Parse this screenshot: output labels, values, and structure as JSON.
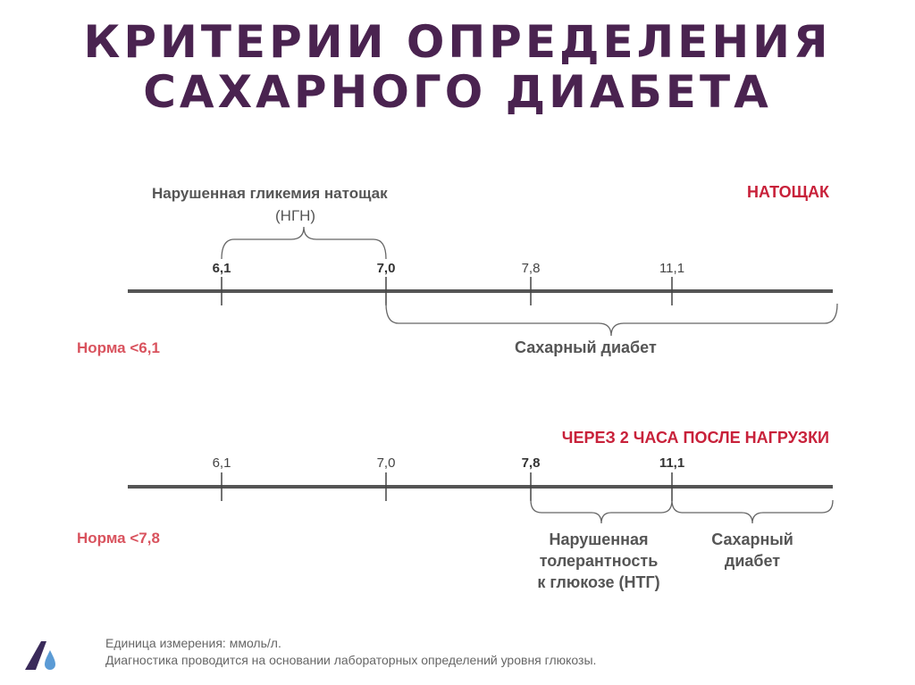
{
  "title_line1": "КРИТЕРИИ ОПРЕДЕЛЕНИЯ",
  "title_line2": "САХАРНОГО ДИАБЕТА",
  "fasting": {
    "header": "НАТОЩАК",
    "ngn_line1": "Нарушенная гликемия натощак",
    "ngn_line2": "(НГН)",
    "ticks": [
      "6,1",
      "7,0",
      "7,8",
      "11,1"
    ],
    "norm": "Норма <6,1",
    "diabetes": "Сахарный диабет"
  },
  "after_load": {
    "header": "ЧЕРЕЗ 2 ЧАСА ПОСЛЕ НАГРУЗКИ",
    "ticks": [
      "6,1",
      "7,0",
      "7,8",
      "11,1"
    ],
    "norm": "Норма <7,8",
    "ntg_line1": "Нарушенная",
    "ntg_line2": "толерантность",
    "ntg_line3": "к глюкозе (НТГ)",
    "diabetes_line1": "Сахарный",
    "diabetes_line2": "диабет"
  },
  "footer": {
    "line1": "Единица измерения: ммоль/л.",
    "line2": "Диагностика проводится на основании лабораторных определений уровня глюкозы."
  },
  "colors": {
    "title": "#4a2350",
    "header_red": "#c8213a",
    "norm_pink": "#d9535e",
    "axis": "#555555"
  },
  "logo_icon": "drop-logo-icon"
}
